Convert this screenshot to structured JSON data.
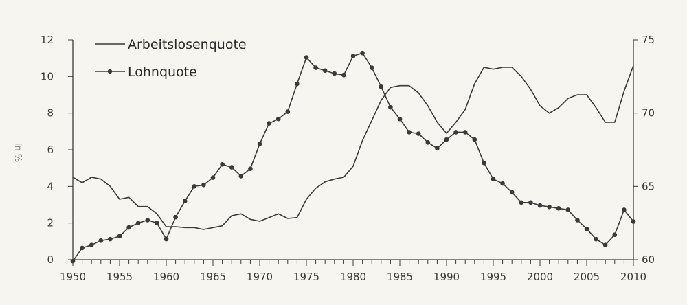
{
  "chart_data": {
    "type": "line",
    "title": "",
    "xlabel": "",
    "ylabel": "in %",
    "xlim": [
      1950,
      2010
    ],
    "ylim": [
      0,
      12
    ],
    "y2lim": [
      60,
      75
    ],
    "x_ticks": [
      1950,
      1955,
      1960,
      1965,
      1970,
      1975,
      1980,
      1985,
      1990,
      1995,
      2000,
      2005,
      2010
    ],
    "y_ticks": [
      0,
      2,
      4,
      6,
      8,
      10,
      12
    ],
    "y2_ticks": [
      60,
      65,
      70,
      75
    ],
    "grid": false,
    "legend_position": "top-left",
    "series": [
      {
        "name": "Arbeitslosenquote",
        "axis": "left",
        "marker": "none",
        "color": "#3a3a3a",
        "x": [
          1950,
          1951,
          1952,
          1953,
          1954,
          1955,
          1956,
          1957,
          1958,
          1959,
          1960,
          1961,
          1962,
          1963,
          1964,
          1965,
          1966,
          1967,
          1968,
          1969,
          1970,
          1971,
          1972,
          1973,
          1974,
          1975,
          1976,
          1977,
          1978,
          1979,
          1980,
          1981,
          1982,
          1983,
          1984,
          1985,
          1986,
          1987,
          1988,
          1989,
          1990,
          1991,
          1992,
          1993,
          1994,
          1995,
          1996,
          1997,
          1998,
          1999,
          2000,
          2001,
          2002,
          2003,
          2004,
          2005,
          2006,
          2007,
          2008,
          2009,
          2010
        ],
        "values": [
          4.5,
          4.2,
          4.5,
          4.4,
          4.0,
          3.3,
          3.4,
          2.9,
          2.9,
          2.5,
          1.8,
          1.8,
          1.75,
          1.75,
          1.65,
          1.75,
          1.85,
          2.4,
          2.5,
          2.2,
          2.1,
          2.3,
          2.5,
          2.25,
          2.3,
          3.3,
          3.9,
          4.25,
          4.4,
          4.5,
          5.1,
          6.5,
          7.6,
          8.7,
          9.4,
          9.5,
          9.5,
          9.1,
          8.4,
          7.5,
          6.9,
          7.5,
          8.2,
          9.6,
          10.5,
          10.4,
          10.5,
          10.5,
          10.0,
          9.3,
          8.4,
          8.0,
          8.3,
          8.8,
          9.0,
          9.0,
          8.3,
          7.5,
          7.5,
          9.2,
          10.6
        ]
      },
      {
        "name": "Lohnquote",
        "axis": "right",
        "marker": "circle",
        "color": "#3a3a3a",
        "x": [
          1950,
          1951,
          1952,
          1953,
          1954,
          1955,
          1956,
          1957,
          1958,
          1959,
          1960,
          1961,
          1962,
          1963,
          1964,
          1965,
          1966,
          1967,
          1968,
          1969,
          1970,
          1971,
          1972,
          1973,
          1974,
          1975,
          1976,
          1977,
          1978,
          1979,
          1980,
          1981,
          1982,
          1983,
          1984,
          1985,
          1986,
          1987,
          1988,
          1989,
          1990,
          1991,
          1992,
          1993,
          1994,
          1995,
          1996,
          1997,
          1998,
          1999,
          2000,
          2001,
          2002,
          2003,
          2004,
          2005,
          2006,
          2007,
          2008,
          2009,
          2010
        ],
        "values": [
          59.9,
          60.8,
          61.0,
          61.3,
          61.4,
          61.6,
          62.2,
          62.5,
          62.7,
          62.5,
          61.4,
          62.9,
          64.0,
          65.0,
          65.1,
          65.6,
          66.5,
          66.3,
          65.7,
          66.2,
          67.9,
          69.3,
          69.6,
          70.1,
          72.0,
          73.8,
          73.1,
          72.9,
          72.7,
          72.6,
          73.9,
          74.1,
          73.1,
          71.8,
          70.4,
          69.6,
          68.7,
          68.6,
          68.0,
          67.6,
          68.2,
          68.7,
          68.7,
          68.2,
          66.6,
          65.5,
          65.2,
          64.6,
          63.9,
          63.9,
          63.7,
          63.6,
          63.5,
          63.4,
          62.7,
          62.1,
          61.4,
          61.0,
          61.7,
          63.4,
          62.6
        ]
      }
    ]
  }
}
